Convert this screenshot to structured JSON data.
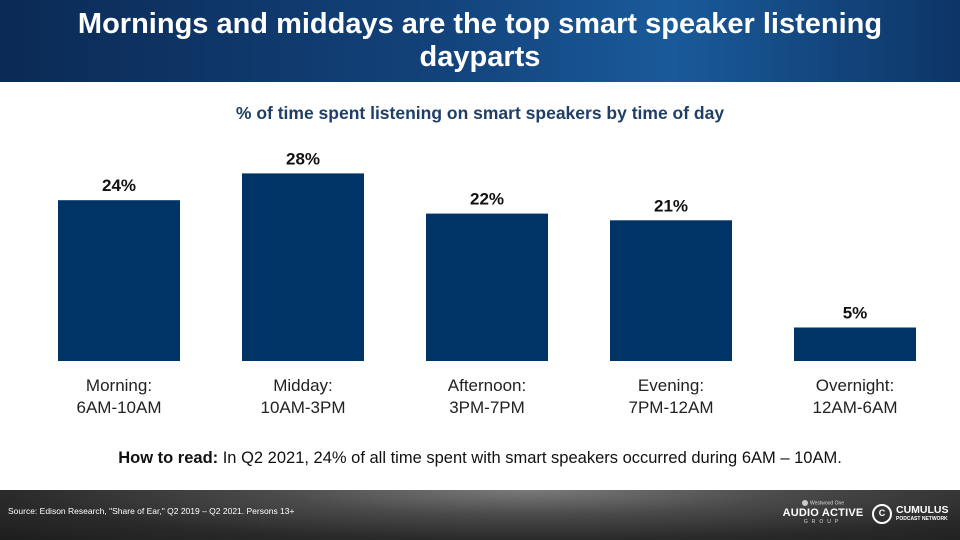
{
  "header": {
    "title": "Mornings and middays are the top smart speaker listening dayparts"
  },
  "chart_data": {
    "type": "bar",
    "title": "% of time spent listening on smart speakers by time of day",
    "categories": [
      [
        "Morning:",
        "6AM-10AM"
      ],
      [
        "Midday:",
        "10AM-3PM"
      ],
      [
        "Afternoon:",
        "3PM-7PM"
      ],
      [
        "Evening:",
        "7PM-12AM"
      ],
      [
        "Overnight:",
        "12AM-6AM"
      ]
    ],
    "values": [
      24,
      28,
      22,
      21,
      5
    ],
    "value_labels": [
      "24%",
      "28%",
      "22%",
      "21%",
      "5%"
    ],
    "unit": "%",
    "ylim": [
      0,
      30
    ],
    "bar_color": "#003366",
    "grid": false,
    "legend": "none"
  },
  "how_to_read": {
    "label": "How to read:",
    "text": " In Q2 2021, 24% of all time spent with smart speakers occurred during 6AM – 10AM."
  },
  "footer": {
    "source": "Source: Edison Research, \"Share of Ear,\" Q2 2019 – Q2 2021. Persons 13+",
    "logo_top": "Westwood One",
    "logo_main": "AUDIO ACTIVE",
    "logo_sub": "GROUP",
    "cumulus_icon": "C",
    "cumulus_name": "CUMULUS",
    "cumulus_sub": "PODCAST NETWORK"
  }
}
